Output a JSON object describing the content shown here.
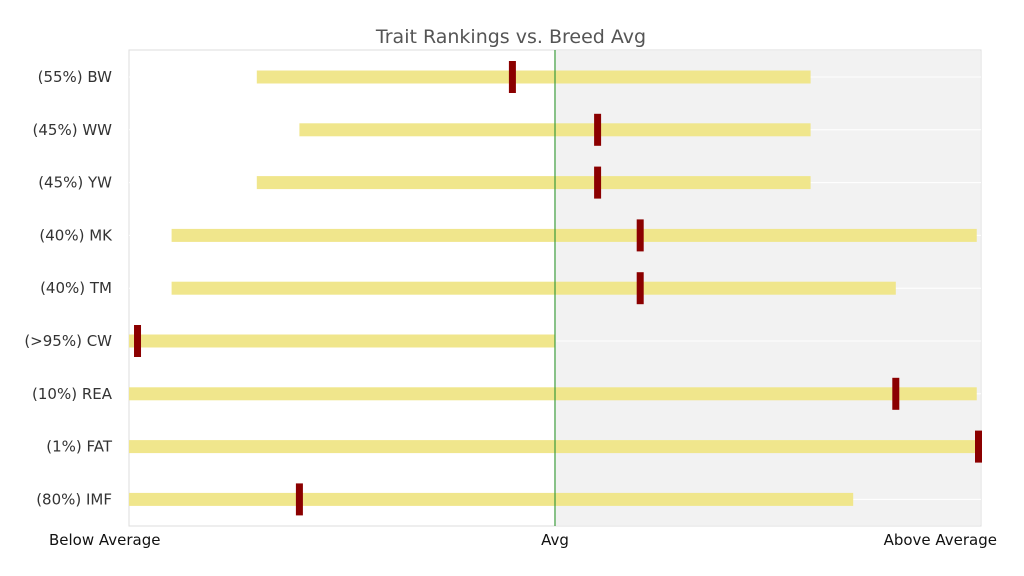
{
  "chart_data": {
    "type": "range-bar",
    "title": "Trait Rankings vs. Breed Avg",
    "x_axis": {
      "min": -100,
      "max": 100,
      "ticks": [
        {
          "value": -100,
          "label": "Below Average"
        },
        {
          "value": 0,
          "label": "Avg"
        },
        {
          "value": 100,
          "label": "Above Average"
        }
      ]
    },
    "grid": true,
    "above_average_region": {
      "from": 0,
      "to": 100,
      "color": "#f2f2f2"
    },
    "avg_line_color": "#3a9a3a",
    "range_color": "#f0e68c",
    "marker_color": "#8b0000",
    "categories": [
      {
        "label": "(55%) BW",
        "range": [
          -70,
          60
        ],
        "value": -10
      },
      {
        "label": "(45%) WW",
        "range": [
          -60,
          60
        ],
        "value": 10
      },
      {
        "label": "(45%) YW",
        "range": [
          -70,
          60
        ],
        "value": 10
      },
      {
        "label": "(40%) MK",
        "range": [
          -90,
          99
        ],
        "value": 20
      },
      {
        "label": "(40%) TM",
        "range": [
          -90,
          80
        ],
        "value": 20
      },
      {
        "label": "(>95%) CW",
        "range": [
          -100,
          0
        ],
        "value": -98
      },
      {
        "label": "(10%) REA",
        "range": [
          -100,
          99
        ],
        "value": 80
      },
      {
        "label": "(1%) FAT",
        "range": [
          -100,
          100
        ],
        "value": 100
      },
      {
        "label": "(80%) IMF",
        "range": [
          -100,
          70
        ],
        "value": -60
      }
    ]
  }
}
